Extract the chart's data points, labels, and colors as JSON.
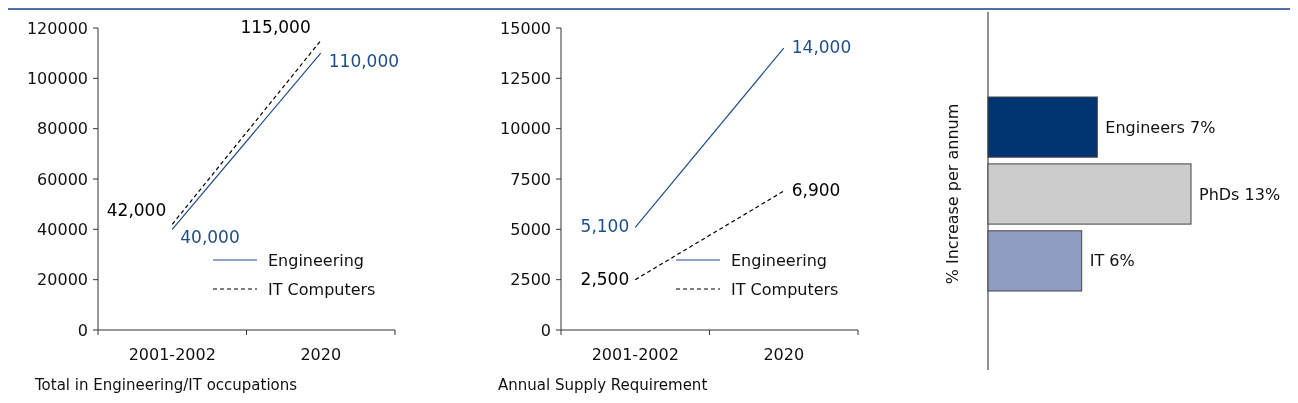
{
  "chart_data": [
    {
      "type": "line",
      "xlabel": "Total in Engineering/IT occupations",
      "categories": [
        "2001-2002",
        "2020"
      ],
      "ylim": [
        0,
        120000
      ],
      "yticks": [
        0,
        20000,
        40000,
        60000,
        80000,
        100000,
        120000
      ],
      "legend": "bottom right",
      "series": [
        {
          "name": "Engineering",
          "color": "#1f4e8c",
          "line_style": "solid",
          "values": [
            40000,
            110000
          ],
          "value_labels": [
            "40,000",
            "110,000"
          ]
        },
        {
          "name": "IT Computers",
          "color": "#000000",
          "line_style": "dashed",
          "values": [
            42000,
            115000
          ],
          "value_labels": [
            "42,000",
            "115,000"
          ]
        }
      ]
    },
    {
      "type": "line",
      "xlabel": "Annual Supply Requirement",
      "categories": [
        "2001-2002",
        "2020"
      ],
      "ylim": [
        0,
        15000
      ],
      "yticks": [
        0,
        2500,
        5000,
        7500,
        10000,
        12500,
        15000
      ],
      "legend": "bottom right",
      "series": [
        {
          "name": "Engineering",
          "color": "#1f4e8c",
          "line_style": "solid",
          "values": [
            5100,
            14000
          ],
          "value_labels": [
            "5,100",
            "14,000"
          ]
        },
        {
          "name": "IT Computers",
          "color": "#000000",
          "line_style": "dashed",
          "values": [
            2500,
            6900
          ],
          "value_labels": [
            "2,500",
            "6,900"
          ]
        }
      ]
    },
    {
      "type": "bar",
      "orientation": "horizontal",
      "ylabel": "% Increase per annum",
      "categories": [
        null,
        null,
        null
      ],
      "values": [
        7,
        13,
        6
      ],
      "colors": [
        "#003572",
        "#cccccc",
        "#8f9dc3"
      ],
      "value_labels": [
        "Engineers 7%",
        "PhDs 13%",
        "IT 6%"
      ]
    }
  ]
}
